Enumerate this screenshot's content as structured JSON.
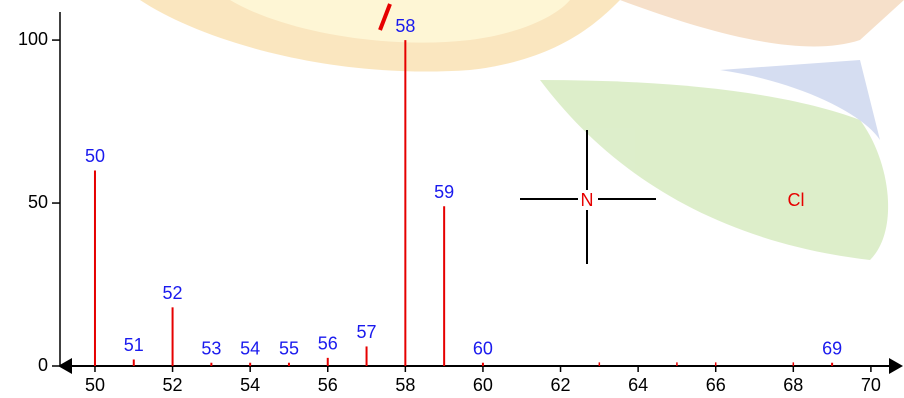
{
  "chart_data": {
    "type": "stem",
    "x": [
      50,
      51,
      52,
      53,
      54,
      55,
      56,
      57,
      58,
      59,
      60,
      69
    ],
    "values": [
      60,
      2,
      18,
      1,
      1,
      1,
      2.5,
      6,
      100,
      49,
      1,
      1
    ],
    "minor_x": [
      63,
      65,
      66,
      68
    ],
    "minor_values": [
      0.5,
      0.5,
      0.5,
      0.5
    ],
    "color": "#e60000",
    "label_color": "#1a1aee",
    "xlim": [
      49.15,
      70.75
    ],
    "xticks": [
      50,
      52,
      54,
      56,
      58,
      60,
      62,
      64,
      66,
      68,
      70
    ],
    "ylim": [
      0,
      108
    ],
    "yticks": [
      0,
      50,
      100
    ],
    "annotations": [
      "N",
      "Cl"
    ]
  }
}
